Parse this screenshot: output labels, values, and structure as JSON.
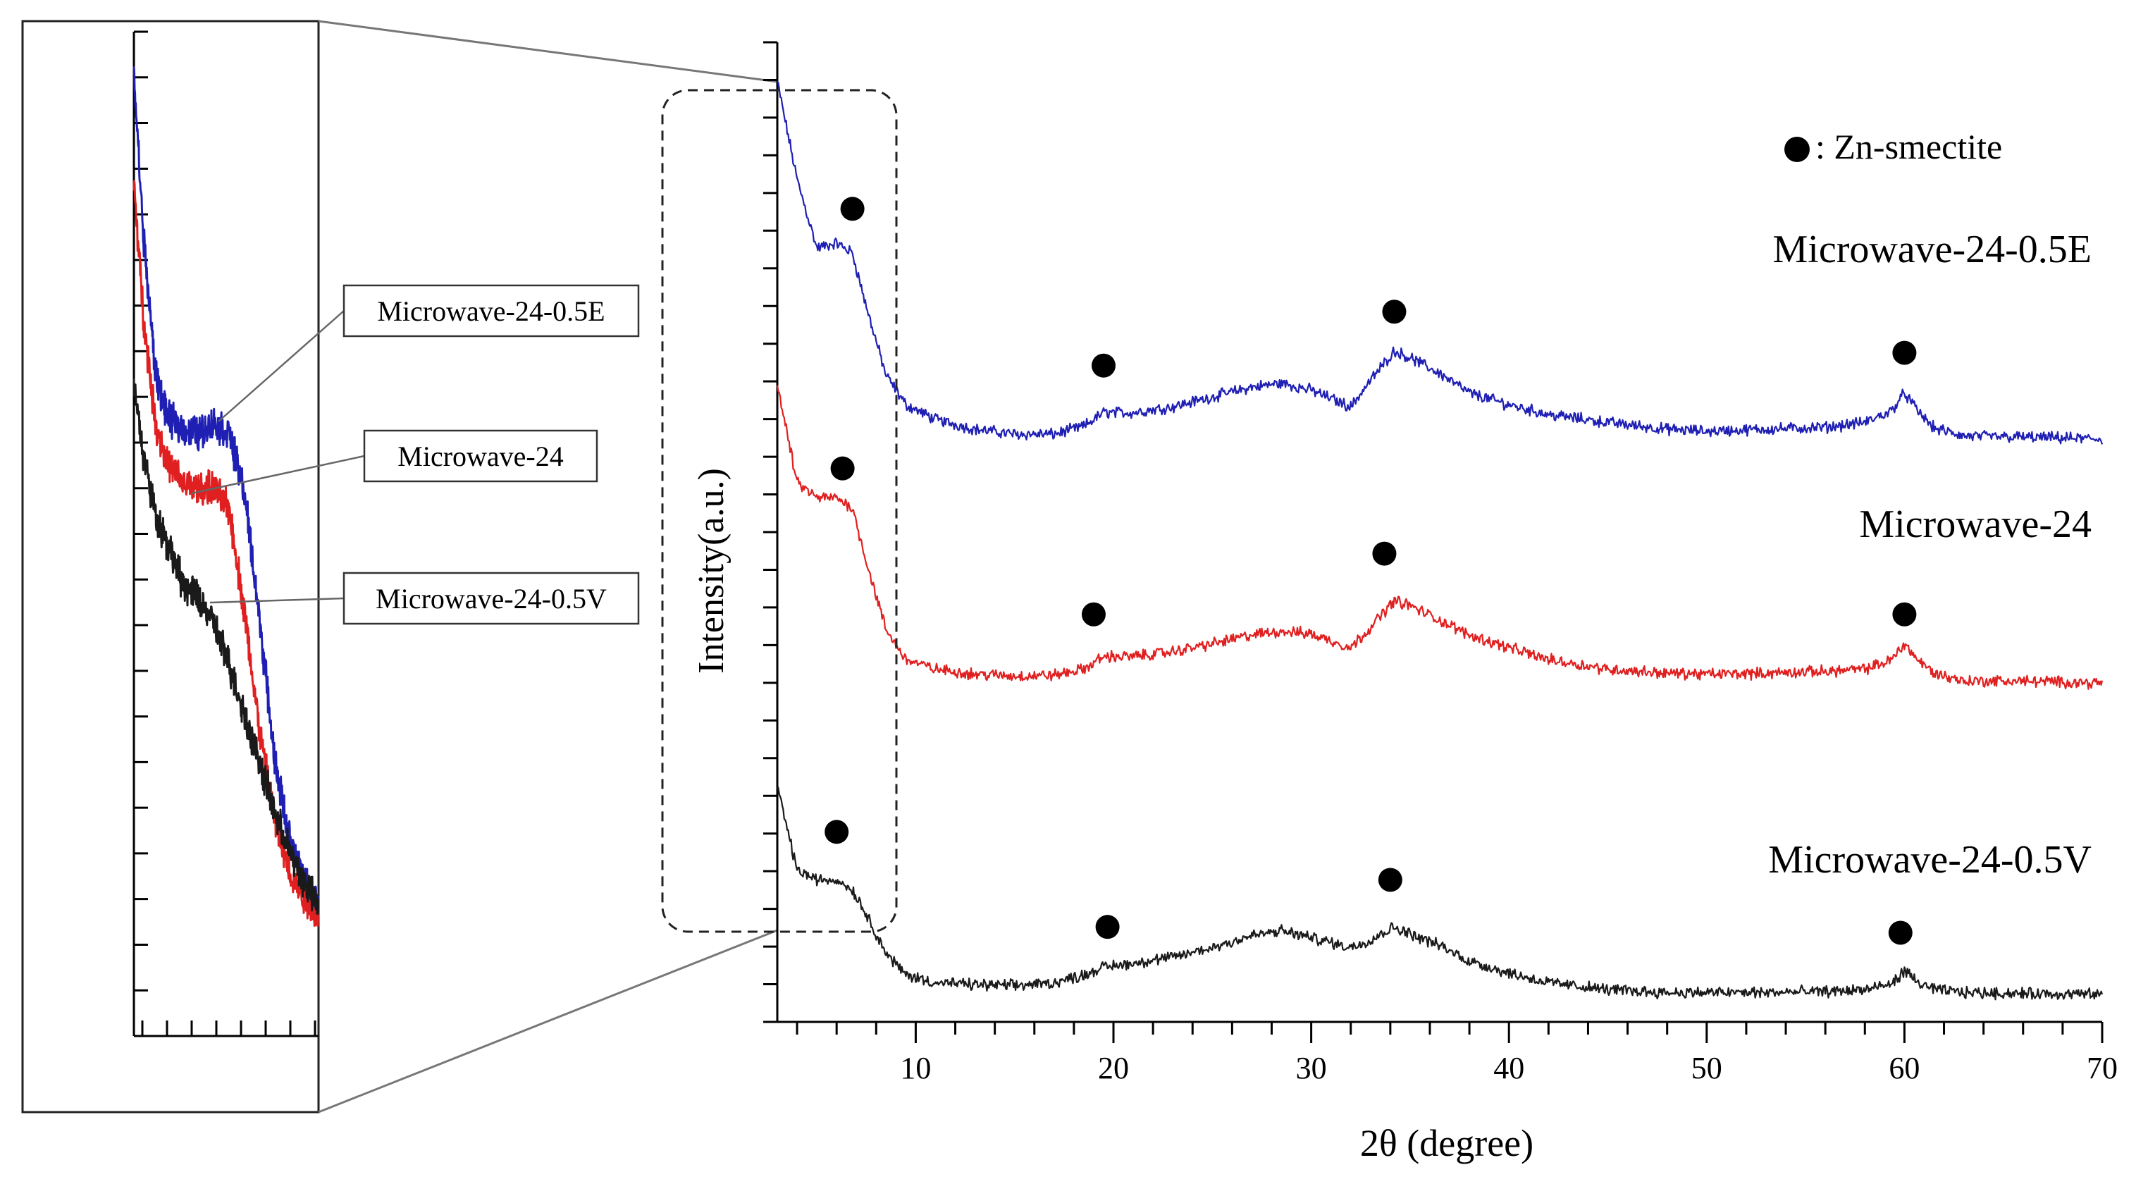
{
  "chart_data": [
    {
      "panel": "main",
      "type": "line",
      "xlabel": "2θ (degree)",
      "ylabel": "Intensity(a.u.)",
      "xlim": [
        3,
        70
      ],
      "xticks": [
        10,
        20,
        30,
        40,
        50,
        60,
        70
      ],
      "ylim": [
        0,
        100
      ],
      "legend": {
        "marker": "filled-circle",
        "text": ": Zn-smectite",
        "position": "top-right"
      },
      "series": [
        {
          "name": "Microwave-24-0.5E",
          "color": "#1f1fb4",
          "x": [
            3,
            4,
            5,
            6,
            6.8,
            7.5,
            8.5,
            9.5,
            11,
            13,
            15,
            17,
            18.5,
            19.5,
            21,
            23,
            25,
            27,
            28.5,
            30,
            32,
            33,
            34.2,
            35,
            36.5,
            38,
            40,
            42,
            45,
            48,
            50,
            53,
            56,
            58,
            59.3,
            60,
            60.7,
            61.5,
            63,
            66,
            70
          ],
          "values": [
            96,
            86,
            79,
            79.5,
            78.5,
            73,
            66,
            63,
            61.5,
            60.5,
            60,
            60,
            60.8,
            62.2,
            62.2,
            62.8,
            63.8,
            64.8,
            65.2,
            64.5,
            62.8,
            65.5,
            68.5,
            67.8,
            66.2,
            64.2,
            63,
            62,
            61.2,
            60.5,
            60.3,
            60.5,
            60.7,
            61.2,
            62.3,
            64.2,
            62.3,
            60.6,
            59.8,
            59.7,
            59.5
          ],
          "peaks": [
            {
              "x": 6.8,
              "y": 83
            },
            {
              "x": 19.5,
              "y": 67
            },
            {
              "x": 34.2,
              "y": 72.5
            },
            {
              "x": 60,
              "y": 68.3
            }
          ]
        },
        {
          "name": "Microwave-24",
          "color": "#e02020",
          "x": [
            3,
            4,
            5,
            6,
            6.8,
            7.5,
            8.5,
            9.5,
            11,
            13,
            15,
            17,
            18.5,
            19.5,
            21,
            23,
            25,
            27,
            28.5,
            30,
            32,
            33,
            34.2,
            35,
            36.5,
            38,
            40,
            42,
            45,
            48,
            50,
            53,
            56,
            58,
            59.3,
            60,
            60.7,
            61.5,
            63,
            66,
            70
          ],
          "values": [
            65,
            55,
            53.5,
            53.5,
            52.5,
            47,
            40,
            37,
            36,
            35.5,
            35.3,
            35.4,
            36,
            37.3,
            37.3,
            37.8,
            38.6,
            39.5,
            39.9,
            39.6,
            38.2,
            40.3,
            43,
            42.5,
            41,
            39.5,
            38.2,
            37,
            36,
            35.6,
            35.5,
            35.6,
            35.8,
            36,
            36.9,
            38.6,
            36.9,
            35.6,
            34.8,
            34.8,
            34.6
          ],
          "peaks": [
            {
              "x": 6.3,
              "y": 56.5
            },
            {
              "x": 19,
              "y": 41.6
            },
            {
              "x": 33.7,
              "y": 47.8
            },
            {
              "x": 60,
              "y": 41.6
            }
          ]
        },
        {
          "name": "Microwave-24-0.5V",
          "color": "#1a1a1a",
          "x": [
            3,
            4,
            5,
            6,
            6.8,
            7.5,
            8.5,
            9.5,
            11,
            13,
            15,
            17,
            18.5,
            19.5,
            21,
            23,
            25,
            27,
            28.5,
            30,
            32,
            33,
            34.2,
            35,
            36.5,
            38,
            40,
            42,
            45,
            48,
            50,
            53,
            56,
            58,
            59.3,
            60,
            60.7,
            61.5,
            63,
            66,
            70
          ],
          "values": [
            24,
            15.5,
            14.5,
            14.5,
            13.5,
            11,
            7,
            4.8,
            4,
            3.8,
            3.7,
            4,
            4.8,
            5.6,
            6,
            6.6,
            7.6,
            8.8,
            9.3,
            8.6,
            7.6,
            8.4,
            9.7,
            9,
            7.8,
            6.2,
            5,
            4,
            3.3,
            3,
            3,
            3,
            3.1,
            3.3,
            3.8,
            5.2,
            4,
            3.3,
            3,
            2.9,
            2.8
          ],
          "peaks": [
            {
              "x": 6.0,
              "y": 19.4
            },
            {
              "x": 19.7,
              "y": 9.7
            },
            {
              "x": 34.0,
              "y": 14.5
            },
            {
              "x": 59.8,
              "y": 9.1
            }
          ]
        }
      ],
      "annotations": [
        {
          "text": "Microwave-24-0.5E",
          "series": "Microwave-24-0.5E"
        },
        {
          "text": "Microwave-24",
          "series": "Microwave-24"
        },
        {
          "text": "Microwave-24-0.5V",
          "series": "Microwave-24-0.5V"
        }
      ]
    },
    {
      "panel": "inset",
      "type": "line",
      "note": "Magnified view of the dashed low-angle region (about 3–9 degrees) of the main plot",
      "xlim": [
        3,
        9
      ],
      "ylim": [
        0,
        100
      ],
      "legend_boxes": [
        {
          "text": "Microwave-24-0.5E",
          "color": "#2a2adc"
        },
        {
          "text": "Microwave-24",
          "color": "#e02020"
        },
        {
          "text": "Microwave-24-0.5V",
          "color": "#111111"
        }
      ],
      "series": [
        {
          "name": "Microwave-24-0.5E",
          "color": "#1f1fb4",
          "x": [
            3,
            3.3,
            3.7,
            4.1,
            4.6,
            5.1,
            5.6,
            6.1,
            6.6,
            7.1,
            7.6,
            8.1,
            8.6,
            9
          ],
          "values": [
            96,
            80,
            66,
            61.5,
            60.5,
            60,
            61,
            60,
            54,
            41,
            27,
            19,
            15,
            13
          ]
        },
        {
          "name": "Microwave-24",
          "color": "#e02020",
          "x": [
            3,
            3.3,
            3.7,
            4.1,
            4.6,
            5.1,
            5.6,
            6.1,
            6.6,
            7.1,
            7.6,
            8.1,
            8.6,
            9
          ],
          "values": [
            85,
            72,
            61,
            57,
            55,
            54.5,
            54.5,
            52.5,
            42,
            30,
            21,
            16,
            13.5,
            12
          ]
        },
        {
          "name": "Microwave-24-0.5V",
          "color": "#1a1a1a",
          "x": [
            3,
            3.3,
            3.7,
            4.1,
            4.6,
            5.1,
            5.6,
            6.1,
            6.6,
            7.1,
            7.6,
            8.1,
            8.6,
            9
          ],
          "values": [
            65,
            58,
            52,
            49,
            45,
            43.5,
            41,
            37,
            32,
            27,
            22,
            18,
            15,
            13
          ]
        }
      ]
    }
  ]
}
